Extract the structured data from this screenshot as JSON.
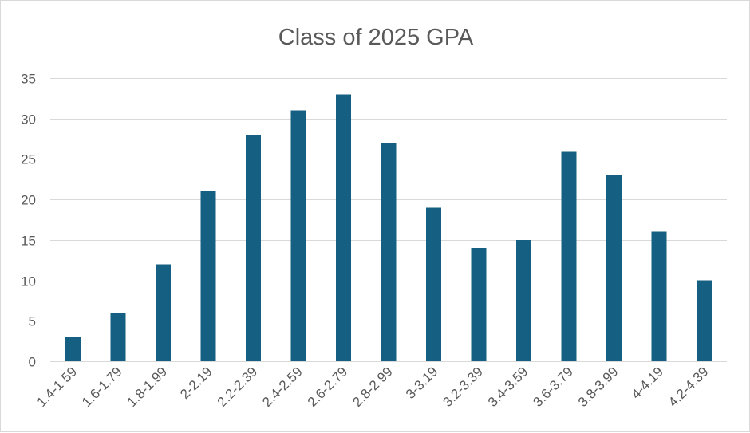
{
  "chart_data": {
    "type": "bar",
    "title": "Class of 2025 GPA",
    "categories": [
      "1.4-1.59",
      "1.6-1.79",
      "1.8-1.99",
      "2-2.19",
      "2.2-2.39",
      "2.4-2.59",
      "2.6-2.79",
      "2.8-2.99",
      "3-3.19",
      "3.2-3.39",
      "3.4-3.59",
      "3.6-3.79",
      "3.8-3.99",
      "4-4.19",
      "4.2-4.39"
    ],
    "values": [
      3,
      6,
      12,
      21,
      28,
      31,
      33,
      27,
      19,
      14,
      15,
      26,
      23,
      16,
      10
    ],
    "ylim": [
      0,
      35
    ],
    "yticks": [
      "0",
      "5",
      "10",
      "15",
      "20",
      "25",
      "30",
      "35"
    ],
    "grid": true,
    "legend": "none",
    "bar_color": "#156082",
    "grid_color": "#d9d9d9",
    "text_color": "#595959"
  }
}
